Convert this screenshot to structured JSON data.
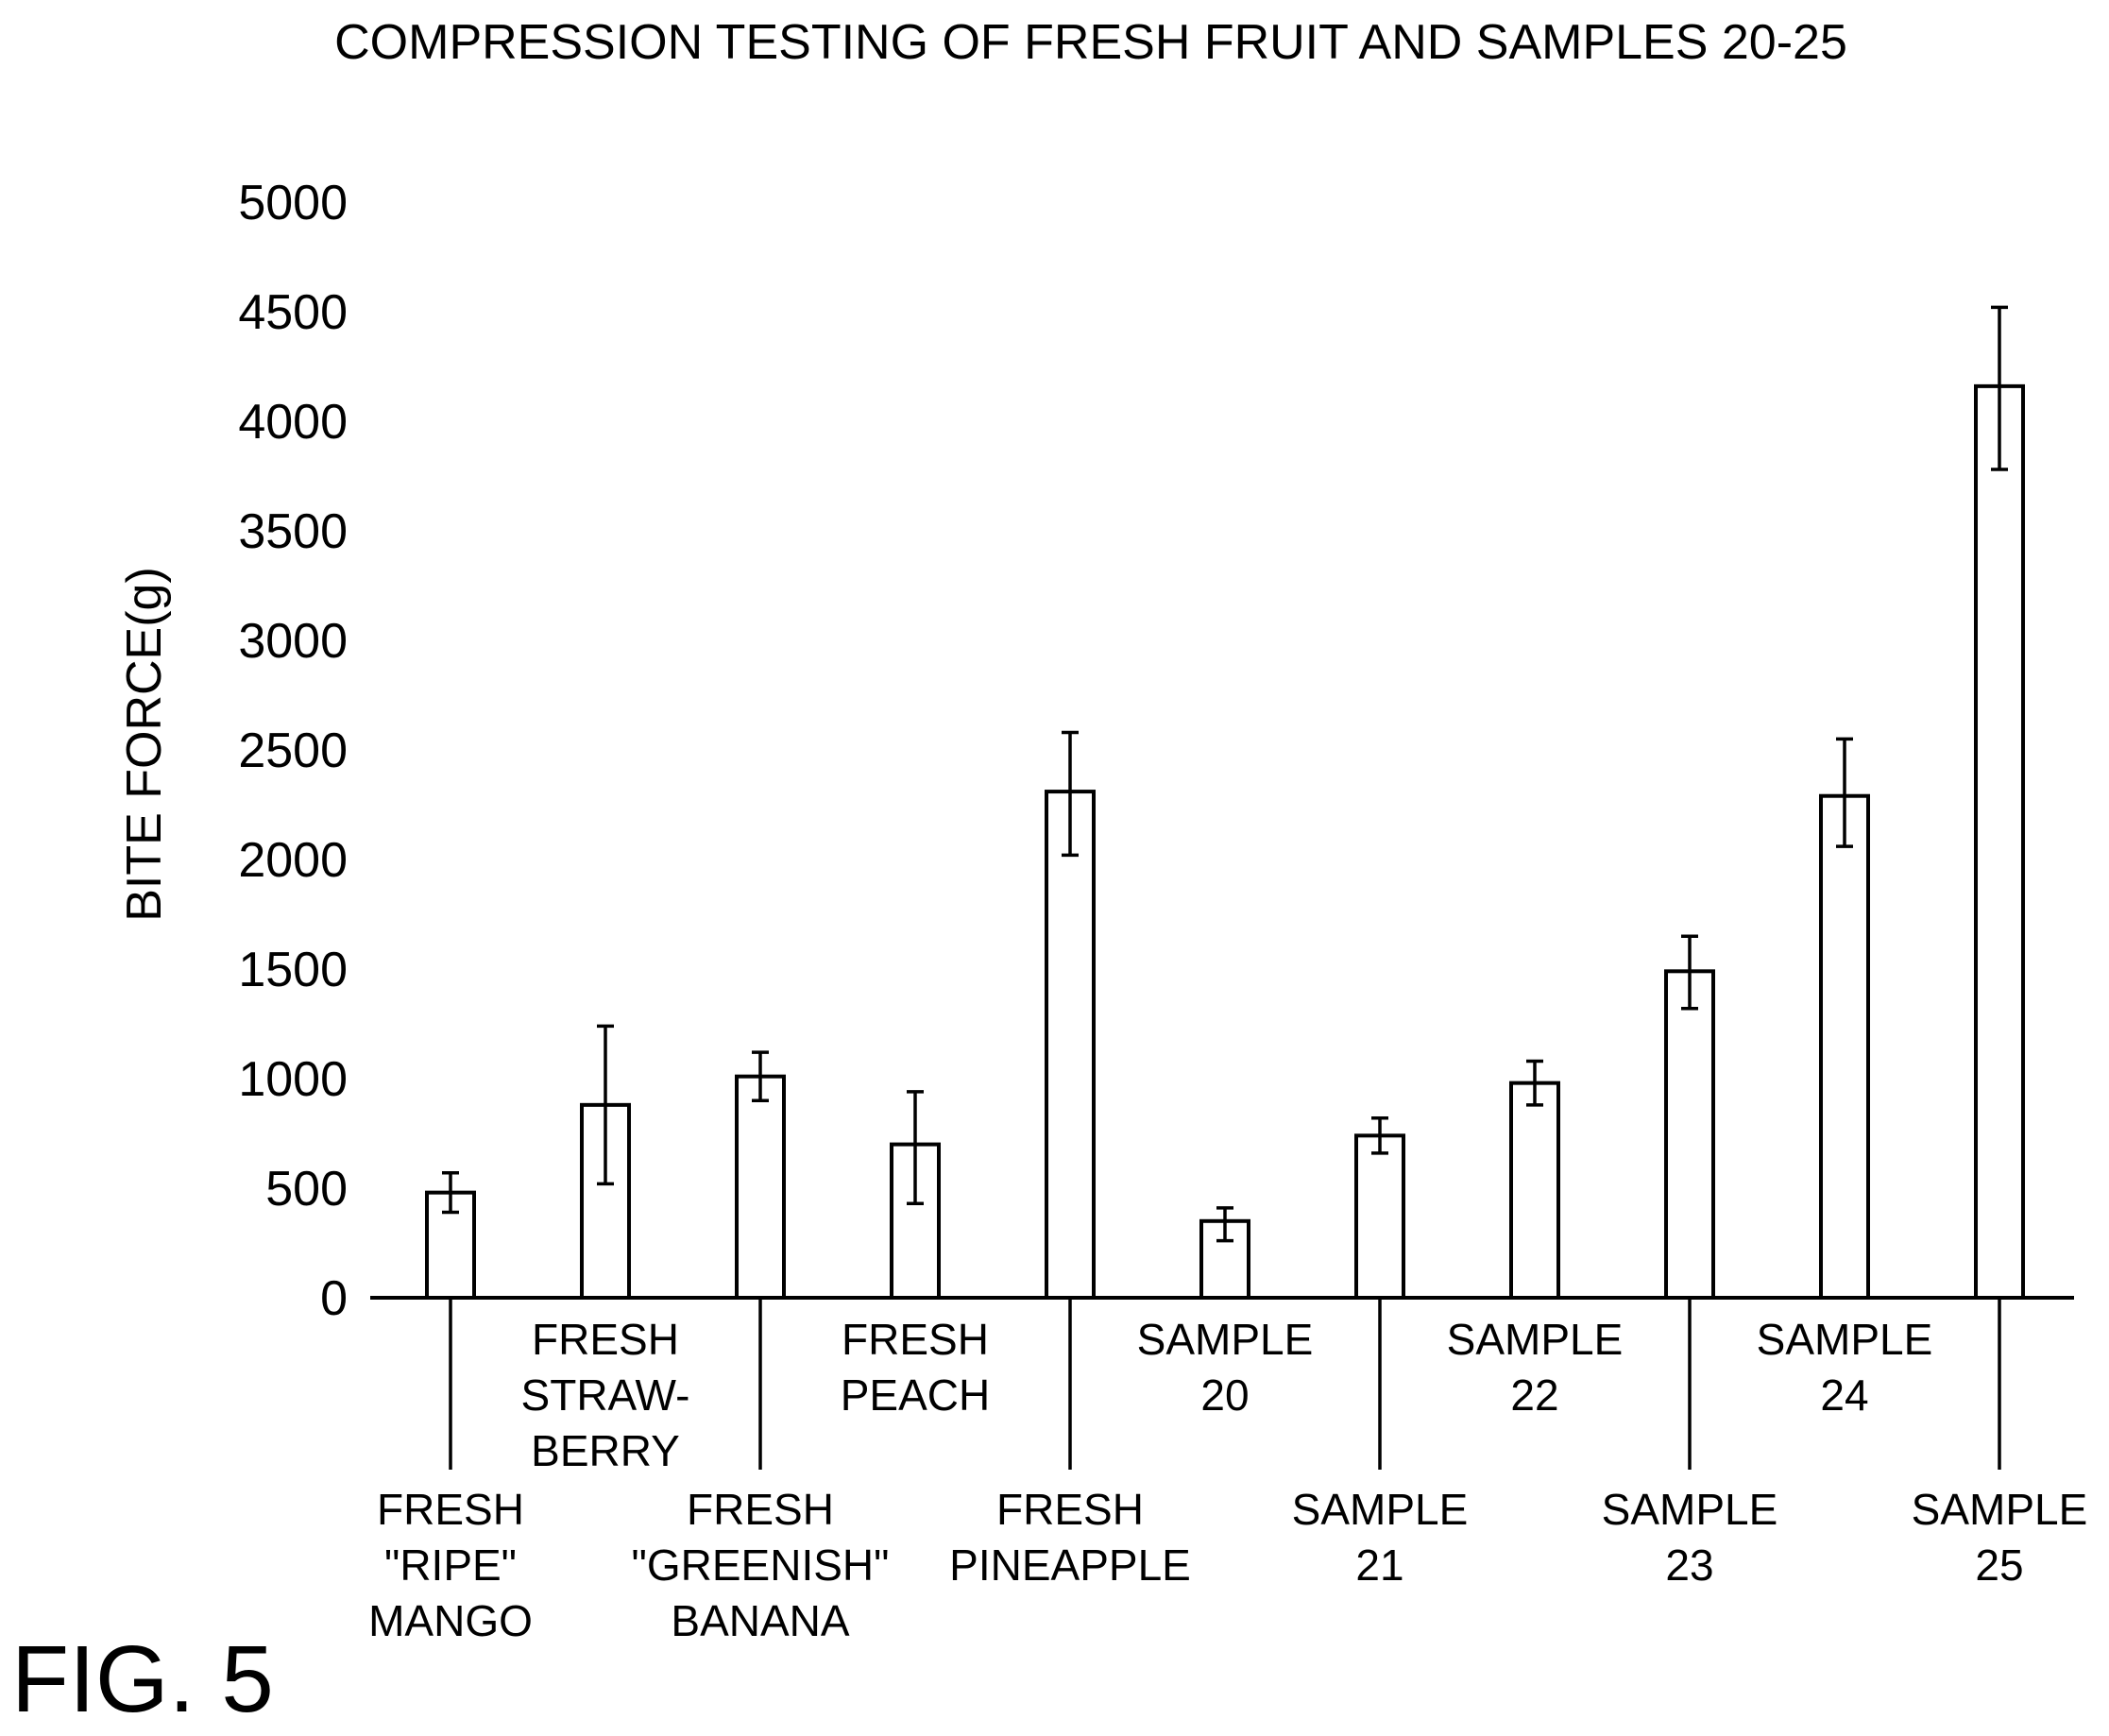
{
  "figure_label": "FIG. 5",
  "chart_data": {
    "type": "bar",
    "title": "COMPRESSION TESTING OF FRESH FRUIT AND SAMPLES 20-25",
    "xlabel": "",
    "ylabel": "BITE FORCE(g)",
    "ylim": [
      0,
      5000
    ],
    "yticks": [
      0,
      500,
      1000,
      1500,
      2000,
      2500,
      3000,
      3500,
      4000,
      4500,
      5000
    ],
    "grid": false,
    "legend": "none",
    "categories": [
      [
        "FRESH",
        "\"RIPE\"",
        "MANGO"
      ],
      [
        "FRESH",
        "STRAW-",
        "BERRY"
      ],
      [
        "FRESH",
        "\"GREENISH\"",
        "BANANA"
      ],
      [
        "FRESH",
        "PEACH"
      ],
      [
        "FRESH",
        "PINEAPPLE"
      ],
      [
        "SAMPLE",
        "20"
      ],
      [
        "SAMPLE",
        "21"
      ],
      [
        "SAMPLE",
        "22"
      ],
      [
        "SAMPLE",
        "23"
      ],
      [
        "SAMPLE",
        "24"
      ],
      [
        "SAMPLE",
        "25"
      ]
    ],
    "label_rows": [
      "low",
      "high",
      "low",
      "high",
      "low",
      "high",
      "low",
      "high",
      "low",
      "high",
      "low"
    ],
    "values": [
      480,
      880,
      1010,
      700,
      2310,
      350,
      740,
      980,
      1490,
      2290,
      4160
    ],
    "error_high": [
      570,
      1240,
      1120,
      940,
      2580,
      410,
      820,
      1080,
      1650,
      2550,
      4520
    ],
    "error_low": [
      390,
      520,
      900,
      430,
      2020,
      260,
      660,
      880,
      1320,
      2060,
      3780
    ]
  }
}
